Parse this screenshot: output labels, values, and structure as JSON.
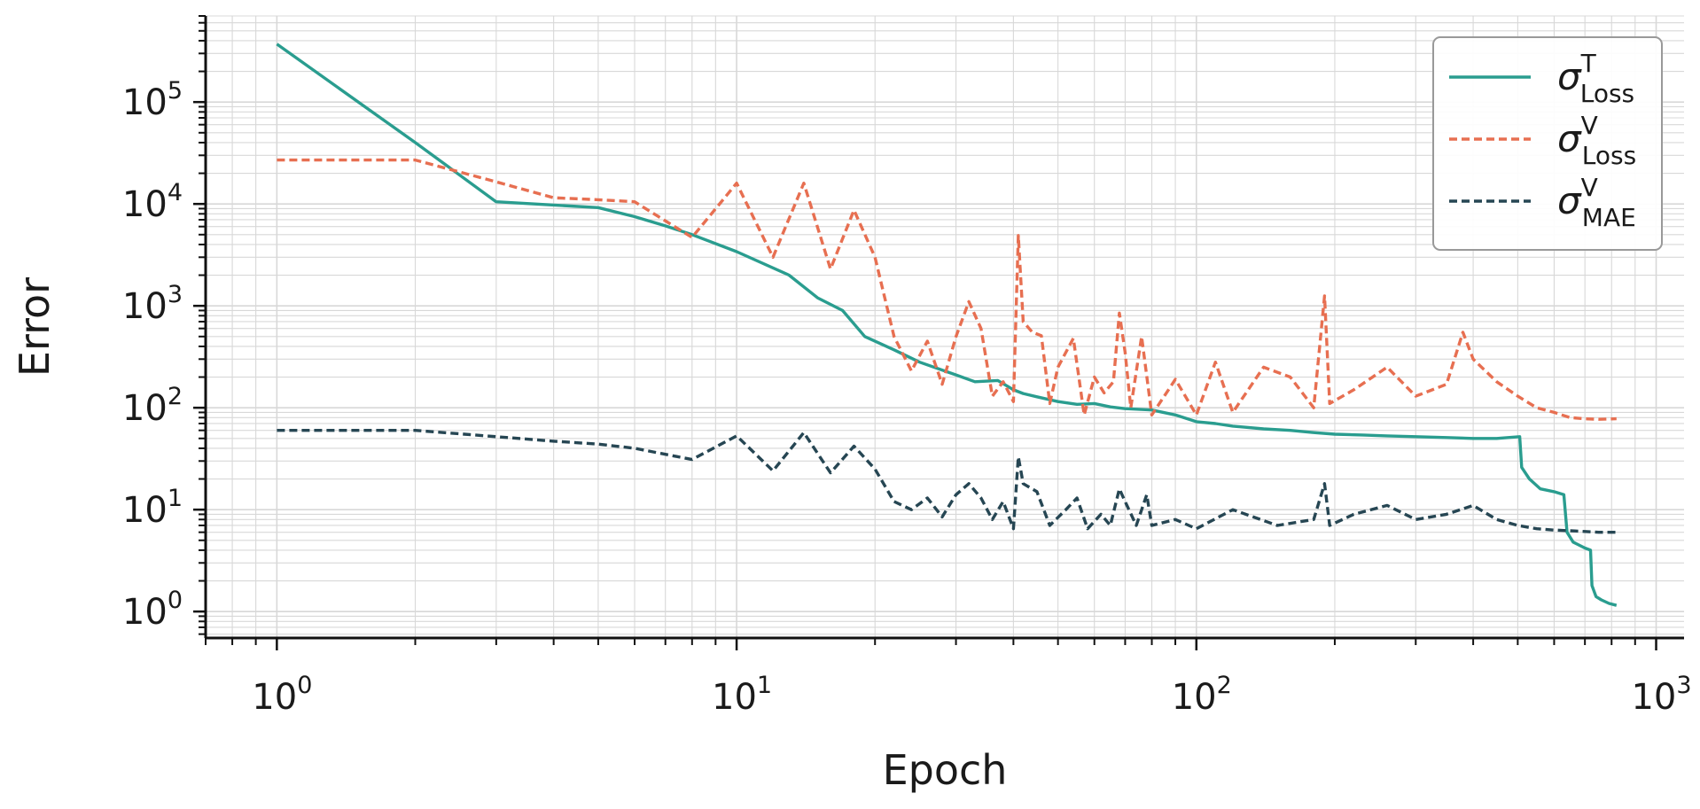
{
  "chart_data": {
    "type": "line",
    "title": "",
    "xlabel": "Epoch",
    "ylabel": "Error",
    "x_scale": "log",
    "y_scale": "log",
    "xlim": [
      0.7,
      1150
    ],
    "ylim": [
      0.55,
      700000
    ],
    "grid": true,
    "legend_position": "top-right",
    "x_ticks": [
      {
        "value": 1,
        "base": "10",
        "exp": "0"
      },
      {
        "value": 10,
        "base": "10",
        "exp": "1"
      },
      {
        "value": 100,
        "base": "10",
        "exp": "2"
      },
      {
        "value": 1000,
        "base": "10",
        "exp": "3"
      }
    ],
    "y_ticks": [
      {
        "value": 1,
        "base": "10",
        "exp": "0"
      },
      {
        "value": 10,
        "base": "10",
        "exp": "1"
      },
      {
        "value": 100,
        "base": "10",
        "exp": "2"
      },
      {
        "value": 1000,
        "base": "10",
        "exp": "3"
      },
      {
        "value": 10000,
        "base": "10",
        "exp": "4"
      },
      {
        "value": 100000,
        "base": "10",
        "exp": "5"
      }
    ],
    "series": [
      {
        "name": "σ",
        "name_sup": "T",
        "name_sub": "Loss",
        "color": "#2a9d8f",
        "dash": "solid",
        "points": [
          [
            1,
            370000
          ],
          [
            2,
            40000
          ],
          [
            3,
            10500
          ],
          [
            5,
            9200
          ],
          [
            6,
            7500
          ],
          [
            7,
            6100
          ],
          [
            8,
            5000
          ],
          [
            10,
            3400
          ],
          [
            13,
            2000
          ],
          [
            15,
            1200
          ],
          [
            17,
            900
          ],
          [
            19,
            500
          ],
          [
            22,
            370
          ],
          [
            25,
            280
          ],
          [
            30,
            210
          ],
          [
            33,
            180
          ],
          [
            37,
            185
          ],
          [
            40,
            150
          ],
          [
            42,
            138
          ],
          [
            45,
            128
          ],
          [
            50,
            115
          ],
          [
            55,
            108
          ],
          [
            60,
            110
          ],
          [
            65,
            102
          ],
          [
            70,
            98
          ],
          [
            80,
            95
          ],
          [
            90,
            85
          ],
          [
            100,
            73
          ],
          [
            110,
            70
          ],
          [
            120,
            66
          ],
          [
            140,
            62
          ],
          [
            160,
            60
          ],
          [
            180,
            57
          ],
          [
            200,
            55
          ],
          [
            230,
            54
          ],
          [
            260,
            53
          ],
          [
            300,
            52
          ],
          [
            350,
            51
          ],
          [
            400,
            50
          ],
          [
            450,
            50
          ],
          [
            505,
            52
          ],
          [
            510,
            26
          ],
          [
            530,
            20
          ],
          [
            560,
            16
          ],
          [
            600,
            15
          ],
          [
            630,
            14
          ],
          [
            640,
            6
          ],
          [
            660,
            4.8
          ],
          [
            700,
            4.2
          ],
          [
            720,
            4.0
          ],
          [
            725,
            1.8
          ],
          [
            740,
            1.4
          ],
          [
            760,
            1.3
          ],
          [
            790,
            1.2
          ],
          [
            820,
            1.15
          ]
        ]
      },
      {
        "name": "σ",
        "name_sup": "V",
        "name_sub": "Loss",
        "color": "#e76f51",
        "dash": "dashed",
        "points": [
          [
            1,
            27000
          ],
          [
            2,
            27000
          ],
          [
            3,
            16500
          ],
          [
            4,
            11500
          ],
          [
            5,
            11000
          ],
          [
            6,
            10500
          ],
          [
            8,
            4700
          ],
          [
            10,
            16000
          ],
          [
            12,
            3000
          ],
          [
            14,
            16000
          ],
          [
            16,
            2300
          ],
          [
            18,
            8700
          ],
          [
            20,
            3000
          ],
          [
            22,
            500
          ],
          [
            24,
            230
          ],
          [
            26,
            450
          ],
          [
            28,
            170
          ],
          [
            30,
            500
          ],
          [
            32,
            1100
          ],
          [
            34,
            600
          ],
          [
            36,
            130
          ],
          [
            38,
            180
          ],
          [
            40,
            115
          ],
          [
            41,
            4900
          ],
          [
            42,
            700
          ],
          [
            44,
            550
          ],
          [
            46,
            510
          ],
          [
            48,
            110
          ],
          [
            50,
            250
          ],
          [
            54,
            480
          ],
          [
            57,
            85
          ],
          [
            60,
            200
          ],
          [
            63,
            140
          ],
          [
            66,
            180
          ],
          [
            68,
            850
          ],
          [
            70,
            350
          ],
          [
            72,
            100
          ],
          [
            76,
            500
          ],
          [
            80,
            85
          ],
          [
            90,
            190
          ],
          [
            100,
            85
          ],
          [
            110,
            280
          ],
          [
            120,
            90
          ],
          [
            140,
            250
          ],
          [
            160,
            200
          ],
          [
            180,
            100
          ],
          [
            190,
            1250
          ],
          [
            195,
            110
          ],
          [
            220,
            150
          ],
          [
            260,
            250
          ],
          [
            300,
            130
          ],
          [
            350,
            170
          ],
          [
            380,
            550
          ],
          [
            400,
            300
          ],
          [
            450,
            180
          ],
          [
            500,
            130
          ],
          [
            550,
            100
          ],
          [
            600,
            90
          ],
          [
            650,
            80
          ],
          [
            700,
            78
          ],
          [
            750,
            77
          ],
          [
            820,
            78
          ]
        ]
      },
      {
        "name": "σ",
        "name_sup": "V",
        "name_sub": "MAE",
        "color": "#264653",
        "dash": "dashed",
        "points": [
          [
            1,
            60
          ],
          [
            2,
            60
          ],
          [
            3,
            52
          ],
          [
            4,
            47
          ],
          [
            5,
            44
          ],
          [
            6,
            40
          ],
          [
            8,
            31
          ],
          [
            10,
            53
          ],
          [
            12,
            24
          ],
          [
            14,
            57
          ],
          [
            16,
            23
          ],
          [
            18,
            42
          ],
          [
            20,
            25
          ],
          [
            22,
            12
          ],
          [
            24,
            10
          ],
          [
            26,
            13
          ],
          [
            28,
            8.5
          ],
          [
            30,
            14
          ],
          [
            32,
            18
          ],
          [
            34,
            13
          ],
          [
            36,
            8
          ],
          [
            38,
            12
          ],
          [
            40,
            6.5
          ],
          [
            41,
            33
          ],
          [
            42,
            18
          ],
          [
            45,
            15
          ],
          [
            48,
            7
          ],
          [
            52,
            10
          ],
          [
            55,
            13
          ],
          [
            58,
            6.5
          ],
          [
            62,
            9
          ],
          [
            65,
            7
          ],
          [
            68,
            16
          ],
          [
            70,
            12
          ],
          [
            74,
            7
          ],
          [
            78,
            14
          ],
          [
            80,
            7
          ],
          [
            90,
            8
          ],
          [
            100,
            6.5
          ],
          [
            120,
            10
          ],
          [
            150,
            7
          ],
          [
            180,
            8
          ],
          [
            190,
            18
          ],
          [
            195,
            7
          ],
          [
            220,
            9
          ],
          [
            260,
            11
          ],
          [
            300,
            8
          ],
          [
            350,
            9
          ],
          [
            400,
            11
          ],
          [
            450,
            8
          ],
          [
            500,
            7
          ],
          [
            550,
            6.5
          ],
          [
            600,
            6.3
          ],
          [
            650,
            6.2
          ],
          [
            700,
            6.1
          ],
          [
            750,
            6
          ],
          [
            820,
            6
          ]
        ]
      }
    ]
  }
}
